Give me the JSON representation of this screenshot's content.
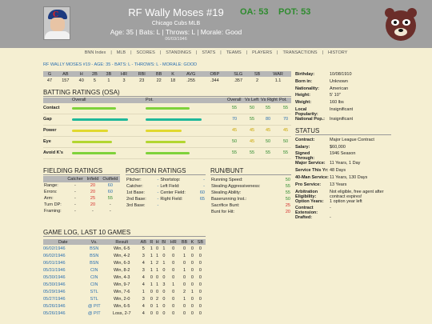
{
  "header": {
    "name": "RF Wally Moses #19",
    "team": "Chicago Cubs MLB",
    "info": "Age: 35 | Bats: L | Throws: L | Morale: Good",
    "date": "06/03/1946",
    "oa": "OA: 53",
    "pot": "POT: 53"
  },
  "nav": [
    "BNN Index",
    "MLB",
    "SCORES",
    "STANDINGS",
    "STATS",
    "TEAMS",
    "PLAYERS",
    "TRANSACTIONS",
    "HISTORY"
  ],
  "subheading": "RF WALLY MOSES #19 - AGE: 35 - BATS: L - THROWS: L - MORALE: GOOD",
  "stats": {
    "headers": [
      "G",
      "AB",
      "H",
      "2B",
      "3B",
      "HR",
      "RBI",
      "BB",
      "K",
      "AVG",
      "OBP",
      "SLG",
      "SB",
      "WAR"
    ],
    "values": [
      "47",
      "157",
      "40",
      "5",
      "1",
      "3",
      "23",
      "22",
      "18",
      ".255",
      ".344",
      ".357",
      "2",
      "1.1"
    ]
  },
  "batting": {
    "title": "BATTING RATINGS (OSA)",
    "head": {
      "overall": "Overall",
      "pot": "Pot.",
      "ov": "Overall",
      "vl": "Vs Left",
      "vr": "Vs Right",
      "p": "Pot."
    },
    "rows": [
      {
        "label": "Contact",
        "overall": 55,
        "pot": 55,
        "vl": 50,
        "vr": 55,
        "p": 55,
        "c": "#7ed23a",
        "pc": "#7ed23a"
      },
      {
        "label": "Gap",
        "overall": 70,
        "pot": 70,
        "vl": 55,
        "vr": 80,
        "p": 70,
        "c": "#1fb89a",
        "pc": "#1fb89a"
      },
      {
        "label": "Power",
        "overall": 45,
        "pot": 45,
        "vl": 45,
        "vr": 45,
        "p": 45,
        "c": "#e1d82e",
        "pc": "#e1d82e"
      },
      {
        "label": "Eye",
        "overall": 50,
        "pot": 50,
        "vl": 45,
        "vr": 50,
        "p": 50,
        "c": "#b2d630",
        "pc": "#b2d630"
      },
      {
        "label": "Avoid K's",
        "overall": 55,
        "pot": 55,
        "vl": 55,
        "vr": 55,
        "p": 55,
        "c": "#7ed23a",
        "pc": "#7ed23a"
      }
    ]
  },
  "fielding": {
    "title": "FIELDING RATINGS",
    "head": [
      "Catcher",
      "Infield",
      "Outfield"
    ],
    "rows": [
      [
        "Range:",
        "-",
        "20",
        "60"
      ],
      [
        "Errors:",
        "-",
        "20",
        "60"
      ],
      [
        "Arm:",
        "-",
        "25",
        "55"
      ],
      [
        "Turn DP:",
        "-",
        "20",
        "-"
      ],
      [
        "Framing:",
        "-",
        "-",
        "-"
      ]
    ]
  },
  "positions": {
    "title": "POSITION RATINGS",
    "rows": [
      [
        "Pitcher:",
        "-",
        "Shortstop:",
        "-"
      ],
      [
        "Catcher:",
        "-",
        "Left Field:",
        "-"
      ],
      [
        "1st Base:",
        "-",
        "Center Field:",
        "60"
      ],
      [
        "2nd Base:",
        "-",
        "Right Field:",
        "65"
      ],
      [
        "3rd Base:",
        "-",
        "",
        ""
      ]
    ]
  },
  "runbunt": {
    "title": "RUN/BUNT",
    "rows": [
      [
        "Running Speed:",
        "50"
      ],
      [
        "Stealing Aggressiveness:",
        "55"
      ],
      [
        "Stealing Ability:",
        "55"
      ],
      [
        "Baserunning Inst.:",
        "50"
      ],
      [
        "Sacrifice Bunt:",
        "25"
      ],
      [
        "Bunt for Hit:",
        "20"
      ]
    ]
  },
  "bio": [
    [
      "Birthday:",
      "10/08/1910"
    ],
    [
      "Born in:",
      "Unknown"
    ],
    [
      "Nationality:",
      "American"
    ],
    [
      "Height:",
      "5' 10\""
    ],
    [
      "Weight:",
      "160 lbs"
    ],
    [
      "Local Popularity:",
      "Insignificant"
    ],
    [
      "National Pop.:",
      "Insignificant"
    ]
  ],
  "status": {
    "title": "STATUS",
    "rows": [
      [
        "Contract:",
        "Major League Contract"
      ],
      [
        "Salary:",
        "$60,000"
      ],
      [
        "Signed Through:",
        "1946 Season"
      ],
      [
        "Major Service:",
        "11 Years, 1 Day"
      ],
      [
        "Service This Yr:",
        "48 Days"
      ],
      [
        "40-Man Service:",
        "11 Years, 130 Days"
      ],
      [
        "Pro Service:",
        "13 Years"
      ],
      [
        "Arbitration Eligibility:",
        "Not eligible, free agent after contract expires!"
      ],
      [
        "Option Years:",
        "1 option year left"
      ],
      [
        "Contract Extension:",
        "-"
      ],
      [
        "Drafted:",
        "-"
      ]
    ]
  },
  "gamelog": {
    "title": "GAME LOG, LAST 10 GAMES",
    "headers": [
      "Date",
      "Vs.",
      "Result",
      "AB",
      "R",
      "H",
      "BI",
      "HR",
      "BB",
      "K",
      "SB"
    ],
    "rows": [
      [
        "06/02/1946",
        "BSN",
        "Win, 6-5",
        "5",
        "1",
        "0",
        "1",
        "0",
        "0",
        "0",
        "0"
      ],
      [
        "06/02/1946",
        "BSN",
        "Win, 4-2",
        "3",
        "1",
        "1",
        "0",
        "0",
        "1",
        "0",
        "0"
      ],
      [
        "06/01/1946",
        "BSN",
        "Win, 6-3",
        "4",
        "1",
        "2",
        "1",
        "0",
        "0",
        "0",
        "0"
      ],
      [
        "05/31/1946",
        "CIN",
        "Win, 8-2",
        "3",
        "1",
        "1",
        "0",
        "0",
        "1",
        "0",
        "0"
      ],
      [
        "05/30/1946",
        "CIN",
        "Win, 4-3",
        "4",
        "0",
        "0",
        "0",
        "0",
        "0",
        "0",
        "0"
      ],
      [
        "05/30/1946",
        "CIN",
        "Win, 9-7",
        "4",
        "1",
        "1",
        "3",
        "1",
        "0",
        "0",
        "0"
      ],
      [
        "05/29/1946",
        "STL",
        "Win, 7-6",
        "1",
        "0",
        "0",
        "0",
        "0",
        "2",
        "1",
        "0"
      ],
      [
        "05/27/1946",
        "STL",
        "Win, 2-0",
        "3",
        "0",
        "2",
        "0",
        "0",
        "1",
        "0",
        "0"
      ],
      [
        "05/26/1946",
        "@ PIT",
        "Win, 6-5",
        "4",
        "0",
        "1",
        "0",
        "0",
        "0",
        "0",
        "0"
      ],
      [
        "05/26/1946",
        "@ PIT",
        "Loss, 2-7",
        "4",
        "0",
        "0",
        "0",
        "0",
        "0",
        "0",
        "0"
      ]
    ]
  },
  "colors": {
    "green": "#2e8b2e",
    "red": "#d42a2a",
    "blue": "#2a6fb0",
    "panel": "#a0a0a0"
  }
}
